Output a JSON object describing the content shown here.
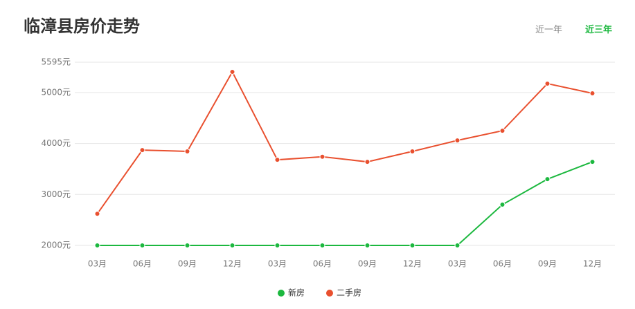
{
  "title": "临漳县房价走势",
  "tabs": [
    "近一年",
    "近三年"
  ],
  "chart_data": {
    "type": "line",
    "categories": [
      "03月",
      "06月",
      "09月",
      "12月",
      "03月",
      "06月",
      "09月",
      "12月",
      "03月",
      "06月",
      "09月",
      "12月"
    ],
    "series": [
      {
        "name": "新房",
        "color": "#1cb83f",
        "values": [
          2000,
          2000,
          2000,
          2000,
          2000,
          2000,
          2000,
          2000,
          2000,
          2800,
          3300,
          3640
        ]
      },
      {
        "name": "二手房",
        "color": "#e9502f",
        "values": [
          2620,
          3870,
          3845,
          5405,
          3680,
          3740,
          3640,
          3845,
          4060,
          4250,
          5175,
          4985
        ]
      }
    ],
    "ylim": [
      2000,
      5595
    ],
    "yticks": [
      {
        "value": 2000,
        "label": "2000元"
      },
      {
        "value": 3000,
        "label": "3000元"
      },
      {
        "value": 4000,
        "label": "4000元"
      },
      {
        "value": 5000,
        "label": "5000元"
      },
      {
        "value": 5595,
        "label": "5595元"
      }
    ],
    "grid": true
  }
}
